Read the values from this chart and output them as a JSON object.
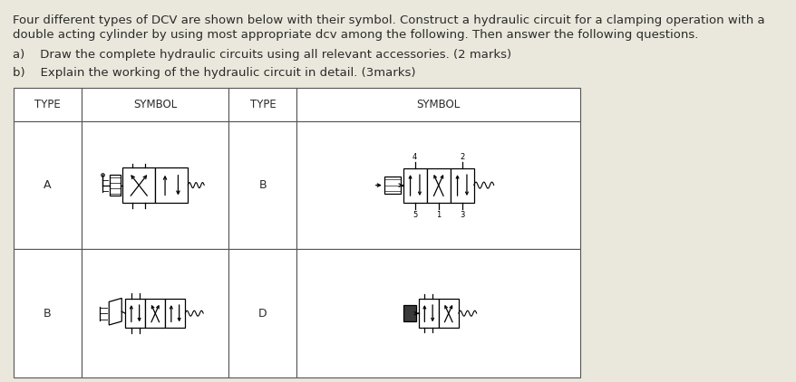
{
  "background_color": "#eae8dc",
  "title_line1": "Four different types of DCV are shown below with their symbol. Construct a hydraulic circuit for a clamping operation with a",
  "title_line2": "double acting cylinder by using most appropriate dcv among the following. Then answer the following questions.",
  "item_a": "a)    Draw the complete hydraulic circuits using all relevant accessories. (2 marks)",
  "item_b": "b)    Explain the working of the hydraulic circuit in detail. (3marks)",
  "col_headers": [
    "TYPE",
    "SYMBOL",
    "TYPE",
    "SYMBOL"
  ],
  "row1_type_left": "A",
  "row1_type_right": "B",
  "row2_type_left": "B",
  "row2_type_right": "D",
  "table_border": "#555555",
  "text_color": "#2a2a2a",
  "font_size": 9.5
}
